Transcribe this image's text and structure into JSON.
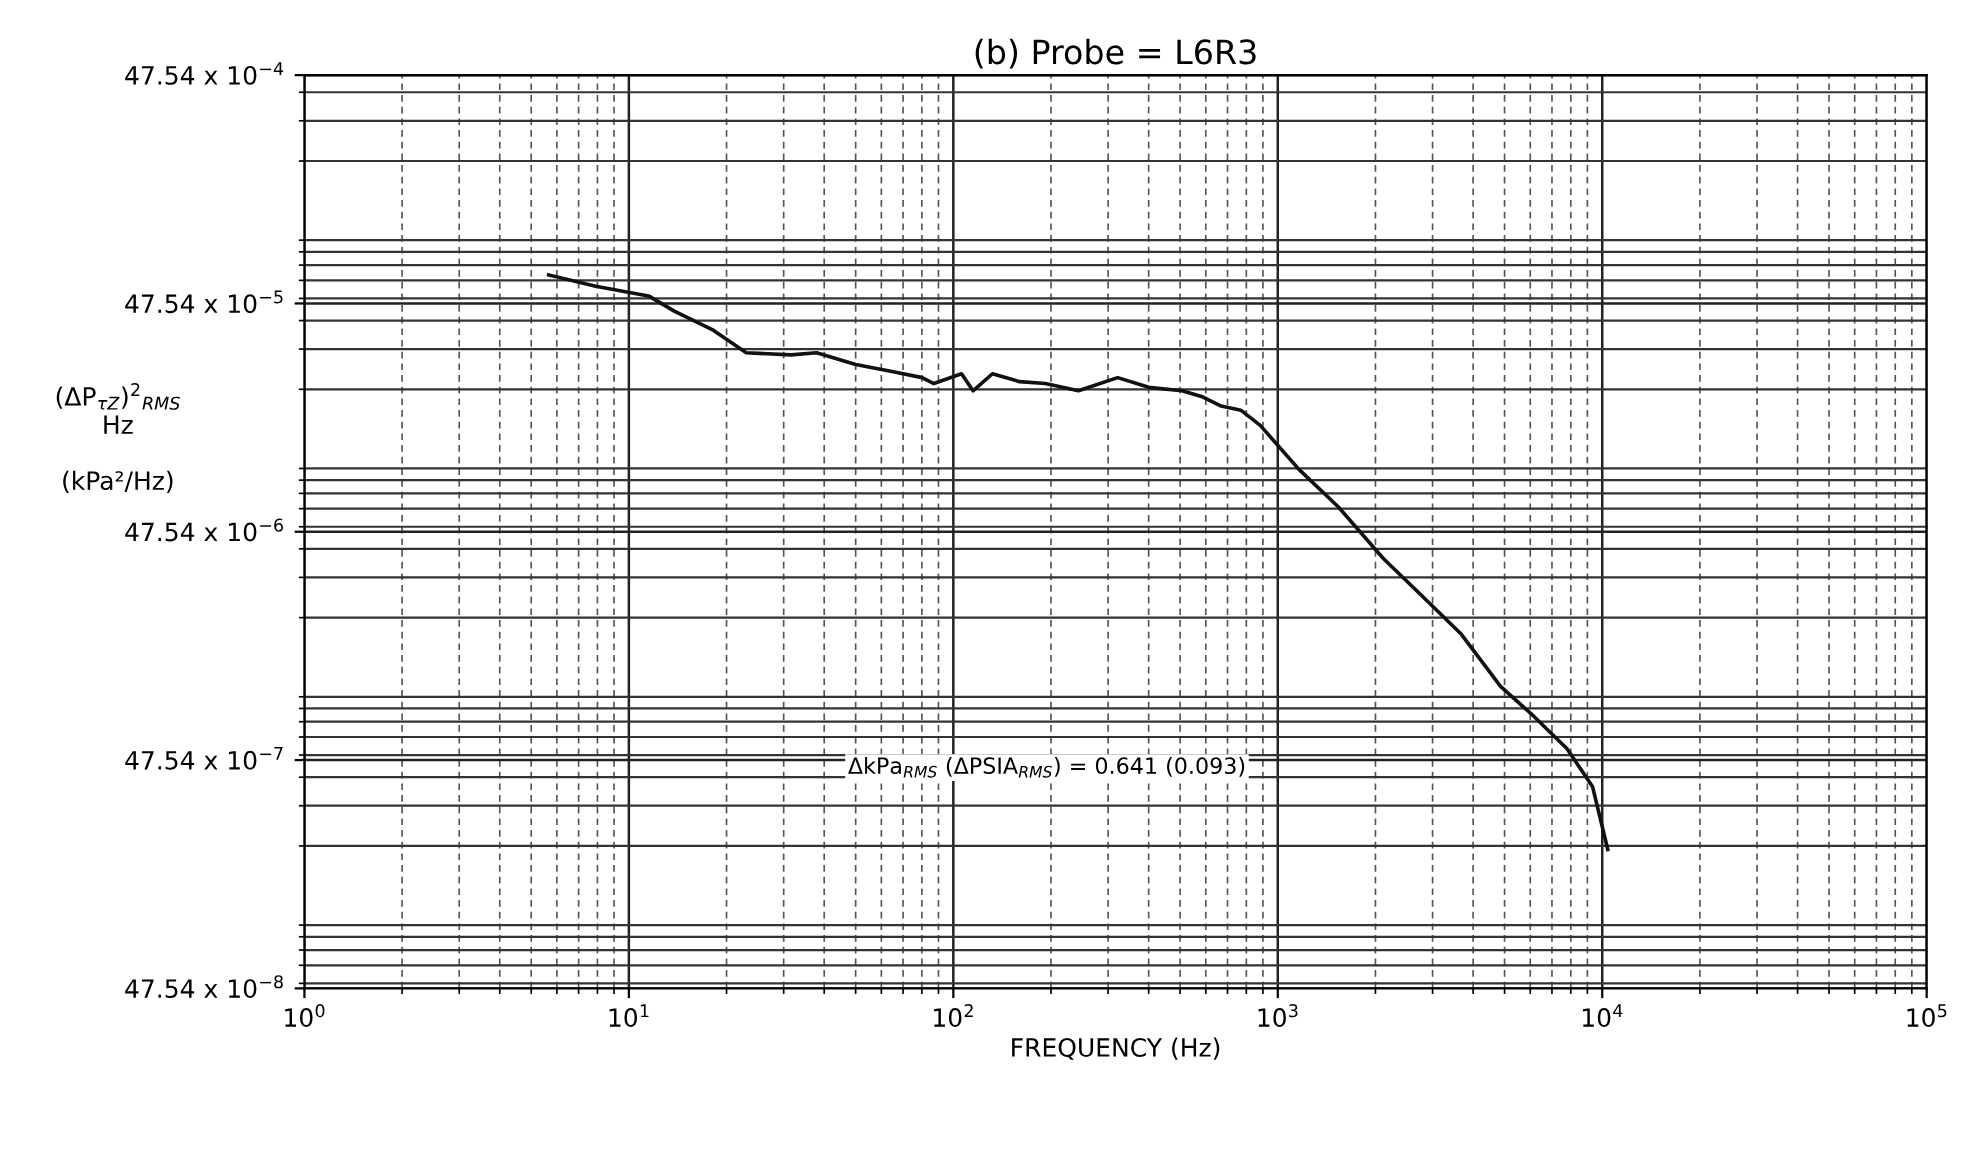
{
  "chart_data": {
    "type": "line",
    "title": "(b) Probe = L6R3",
    "xlabel": "FREQUENCY (Hz)",
    "ylabel": "(ΔP$_{τZ}$)$^{2}$$_{RMS}$\nHz\n\n(kPa²/Hz)",
    "annotations": [
      "ΔkPa$_{RMS}$ (ΔPSIA$_{RMS}$) = 0.641 (0.093)"
    ],
    "log": "xy",
    "grid": true,
    "marker": "none",
    "line_style": "solid",
    "xlim": [
      1,
      100000
    ],
    "xticks": [
      {
        "value": 1,
        "label": "10$^{0}$"
      },
      {
        "value": 10,
        "label": "10$^{1}$"
      },
      {
        "value": 100,
        "label": "10$^{2}$"
      },
      {
        "value": 1000,
        "label": "10$^{3}$"
      },
      {
        "value": 10000,
        "label": "10$^{4}$"
      },
      {
        "value": 100000,
        "label": "10$^{5}$"
      }
    ],
    "ylim": [
      4.754e-07,
      0.004754
    ],
    "yticks": [
      {
        "value": 4.754e-07,
        "label": "47.54 x 10$^{−8}$"
      },
      {
        "value": 4.754e-06,
        "label": "47.54 x 10$^{−7}$"
      },
      {
        "value": 4.754e-05,
        "label": "47.54 x 10$^{−6}$"
      },
      {
        "value": 0.0004754,
        "label": "47.54 x 10$^{−5}$"
      },
      {
        "value": 0.004754,
        "label": "47.54 x 10$^{−4}$"
      }
    ],
    "series": [
      {
        "color": "#111111",
        "x": [
          5.66,
          7.9,
          11.5,
          13.8,
          18.2,
          23.0,
          31.6,
          37.9,
          50.0,
          65.9,
          80.1,
          87.1,
          106,
          115,
          132,
          160,
          192,
          243,
          321,
          400,
          507,
          582,
          669,
          769,
          883,
          1164,
          1538,
          2115,
          2790,
          3680,
          4860,
          6150,
          7790,
          9340,
          10400
        ],
        "values": [
          0.000634,
          0.000565,
          0.000513,
          0.00044,
          0.000363,
          0.000289,
          0.000283,
          0.000289,
          0.000257,
          0.000238,
          0.000225,
          0.000212,
          0.000234,
          0.000197,
          0.000234,
          0.000216,
          0.000212,
          0.000197,
          0.000225,
          0.000204,
          0.000197,
          0.000186,
          0.000169,
          0.000162,
          0.000139,
          8.9e-05,
          6.1e-05,
          3.63e-05,
          2.48e-05,
          1.69e-05,
          1e-05,
          7.4e-06,
          5.33e-06,
          3.63e-06,
          1.93e-06
        ]
      }
    ]
  }
}
